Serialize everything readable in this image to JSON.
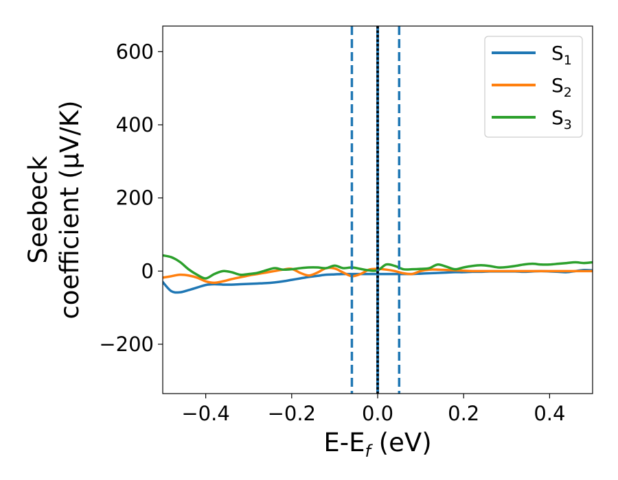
{
  "chart_data": {
    "type": "line",
    "title": "",
    "xlabel": {
      "main": "E-E",
      "sub": "f",
      "unit": " (eV)"
    },
    "ylabel": {
      "line1": "Seebeck",
      "line2": "coefficient  (μV/K)"
    },
    "xlim": [
      -0.5,
      0.5
    ],
    "ylim": [
      -335,
      670
    ],
    "x_ticks": [
      -0.4,
      -0.2,
      0.0,
      0.2,
      0.4
    ],
    "x_tick_labels": [
      "−0.4",
      "−0.2",
      "0.0",
      "0.2",
      "0.4"
    ],
    "y_ticks": [
      -200,
      0,
      200,
      400,
      600
    ],
    "y_tick_labels": [
      "−200",
      "0",
      "200",
      "400",
      "600"
    ],
    "grid": false,
    "legend_position": "top-right",
    "x": [
      -0.5,
      -0.48,
      -0.46,
      -0.44,
      -0.42,
      -0.4,
      -0.38,
      -0.36,
      -0.34,
      -0.32,
      -0.3,
      -0.28,
      -0.26,
      -0.24,
      -0.22,
      -0.2,
      -0.18,
      -0.16,
      -0.14,
      -0.12,
      -0.1,
      -0.08,
      -0.06,
      -0.04,
      -0.02,
      0.0,
      0.02,
      0.04,
      0.06,
      0.08,
      0.1,
      0.12,
      0.14,
      0.16,
      0.18,
      0.2,
      0.22,
      0.24,
      0.26,
      0.28,
      0.3,
      0.32,
      0.34,
      0.36,
      0.38,
      0.4,
      0.42,
      0.44,
      0.46,
      0.48,
      0.5
    ],
    "series": [
      {
        "name_main": "S",
        "name_sub": "1",
        "color": "#1f77b4",
        "values": [
          -30,
          -55,
          -58,
          -52,
          -45,
          -38,
          -36,
          -37,
          -37,
          -36,
          -35,
          -34,
          -33,
          -31,
          -28,
          -24,
          -20,
          -16,
          -13,
          -10,
          -9,
          -8,
          -8,
          -8,
          -8,
          -8,
          -8,
          -8,
          -8,
          -8,
          -7,
          -6,
          -5,
          -4,
          -3,
          -3,
          -2,
          -2,
          -1,
          -1,
          -1,
          -1,
          -2,
          -1,
          0,
          -1,
          -2,
          -3,
          0,
          3,
          2
        ]
      },
      {
        "name_main": "S",
        "name_sub": "2",
        "color": "#ff7f0e",
        "values": [
          -18,
          -14,
          -10,
          -12,
          -18,
          -28,
          -32,
          -28,
          -22,
          -17,
          -12,
          -8,
          -4,
          0,
          4,
          6,
          -5,
          -12,
          -4,
          8,
          7,
          -4,
          -14,
          -8,
          4,
          6,
          4,
          0,
          -6,
          -8,
          0,
          4,
          4,
          3,
          2,
          1,
          0,
          0,
          0,
          0,
          0,
          0,
          0,
          0,
          0,
          0,
          0,
          0,
          0,
          0,
          0
        ]
      },
      {
        "name_main": "S",
        "name_sub": "3",
        "color": "#2ca02c",
        "values": [
          43,
          38,
          25,
          5,
          -10,
          -20,
          -8,
          0,
          -3,
          -10,
          -8,
          -5,
          2,
          8,
          4,
          5,
          8,
          10,
          10,
          8,
          15,
          8,
          10,
          6,
          2,
          2,
          18,
          14,
          5,
          5,
          6,
          8,
          18,
          12,
          5,
          10,
          14,
          16,
          14,
          10,
          11,
          14,
          18,
          20,
          18,
          18,
          20,
          22,
          24,
          22,
          24
        ]
      }
    ],
    "vertical_lines": [
      {
        "x": -0.06,
        "style": "dashed",
        "color": "#1f77b4"
      },
      {
        "x": 0.05,
        "style": "dashed",
        "color": "#1f77b4"
      },
      {
        "x": 0.0,
        "style": "solid",
        "color": "#1f77b4"
      },
      {
        "x": 0.0,
        "style": "dotted",
        "color": "#000000"
      }
    ]
  }
}
